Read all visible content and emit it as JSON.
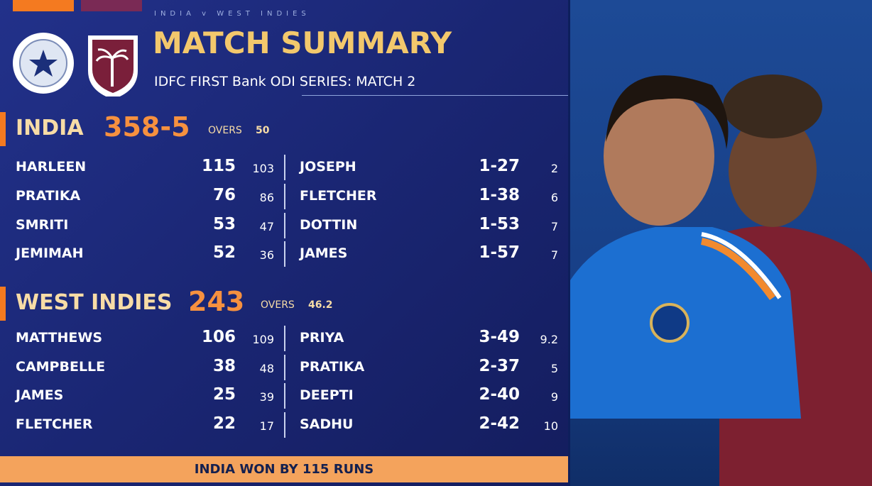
{
  "header": {
    "series_tag": "INDIA v WEST INDIES",
    "title": "MATCH SUMMARY",
    "subtitle": "IDFC FIRST Bank ODI SERIES: MATCH 2"
  },
  "innings": [
    {
      "team": "INDIA",
      "score": "358-5",
      "overs_label": "OVERS",
      "overs": 50,
      "batting": [
        {
          "name": "HARLEEN",
          "runs": 115,
          "balls": 103
        },
        {
          "name": "PRATIKA",
          "runs": 76,
          "balls": 86
        },
        {
          "name": "SMRITI",
          "runs": 53,
          "balls": 47
        },
        {
          "name": "JEMIMAH",
          "runs": 52,
          "balls": 36
        }
      ],
      "bowling": [
        {
          "name": "JOSEPH",
          "figures": "1-27",
          "overs": 2
        },
        {
          "name": "FLETCHER",
          "figures": "1-38",
          "overs": 6
        },
        {
          "name": "DOTTIN",
          "figures": "1-53",
          "overs": 7
        },
        {
          "name": "JAMES",
          "figures": "1-57",
          "overs": 7
        }
      ]
    },
    {
      "team": "WEST INDIES",
      "score": "243",
      "overs_label": "OVERS",
      "overs": 46.2,
      "batting": [
        {
          "name": "MATTHEWS",
          "runs": 106,
          "balls": 109
        },
        {
          "name": "CAMPBELLE",
          "runs": 38,
          "balls": 48
        },
        {
          "name": "JAMES",
          "runs": 25,
          "balls": 39
        },
        {
          "name": "FLETCHER",
          "runs": 22,
          "balls": 17
        }
      ],
      "bowling": [
        {
          "name": "PRIYA",
          "figures": "3-49",
          "overs": 9.2
        },
        {
          "name": "PRATIKA",
          "figures": "2-37",
          "overs": 5
        },
        {
          "name": "DEEPTI",
          "figures": "2-40",
          "overs": 9
        },
        {
          "name": "SADHU",
          "figures": "2-42",
          "overs": 10
        }
      ]
    }
  ],
  "result": "INDIA WON BY 115 RUNS"
}
